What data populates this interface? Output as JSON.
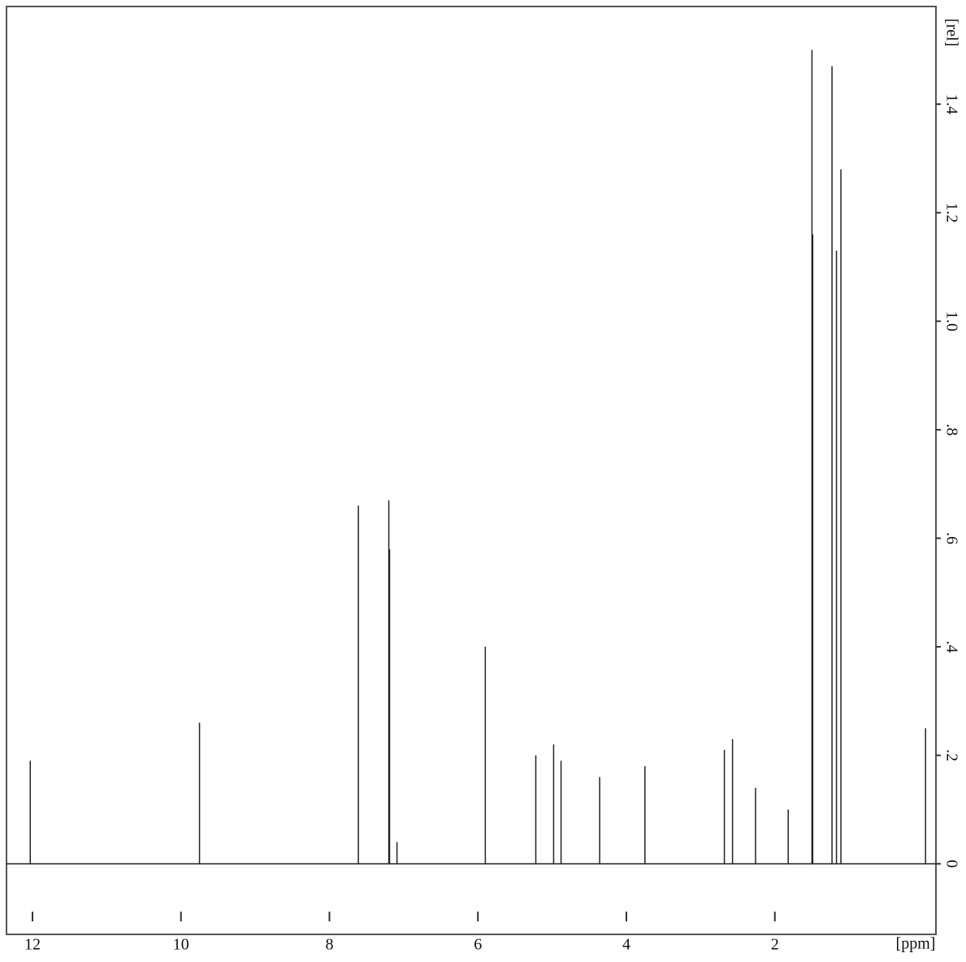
{
  "chart_data": {
    "type": "spectrum",
    "x_label": "[ppm]",
    "y_label": "[rel]",
    "x": [
      12.03,
      9.75,
      7.61,
      7.2,
      7.19,
      7.09,
      5.9,
      5.22,
      4.98,
      4.88,
      4.36,
      3.75,
      2.68,
      2.57,
      2.26,
      1.82,
      1.5,
      1.49,
      1.23,
      1.17,
      1.11,
      -0.03
    ],
    "values": [
      0.19,
      0.26,
      0.66,
      0.67,
      0.58,
      0.04,
      0.4,
      0.2,
      0.22,
      0.19,
      0.16,
      0.18,
      0.21,
      0.23,
      0.14,
      0.1,
      1.5,
      1.16,
      1.47,
      1.13,
      1.28,
      0.25
    ],
    "color": "#222222",
    "xlim": [
      12.35,
      -0.17
    ],
    "ylim": [
      -0.13,
      1.58
    ],
    "xticks": [
      12,
      10,
      8,
      6,
      4,
      2
    ],
    "yticks": [
      0,
      {
        "value": 0.2,
        "label": ".2"
      },
      {
        "value": 0.4,
        "label": ".4"
      },
      {
        "value": 0.6,
        "label": ".6"
      },
      {
        "value": 0.8,
        "label": ".8"
      },
      {
        "value": 1.0,
        "label": "1.0"
      },
      1.2,
      1.4
    ]
  }
}
